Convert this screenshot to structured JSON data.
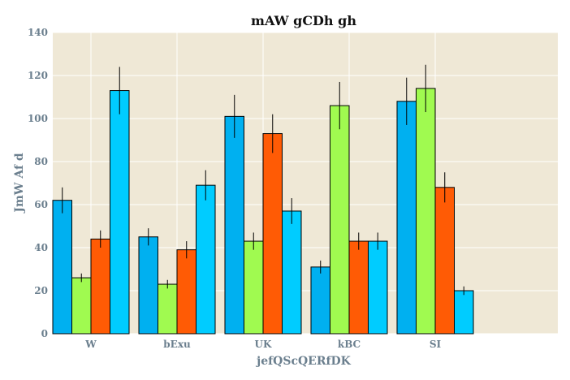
{
  "chart_data": {
    "type": "bar",
    "title": "mAW  gCDh gh",
    "xlabel": "jefQScQERfDK",
    "ylabel": "JmW Af d",
    "categories": [
      "W",
      "bExu",
      "UK",
      "kBC",
      "SI"
    ],
    "ylim": [
      0,
      140
    ],
    "yticks": [
      0,
      20,
      40,
      60,
      80,
      100,
      120,
      140
    ],
    "grid": true,
    "legend": "none",
    "plot_background": "#efe8d6",
    "series": [
      {
        "color": "#00b0f0",
        "values": [
          62,
          45,
          101,
          31,
          108
        ],
        "errors": [
          6,
          4,
          10,
          3,
          11
        ]
      },
      {
        "color": "#a0fa50",
        "values": [
          26,
          23,
          43,
          106,
          114
        ],
        "errors": [
          2,
          2,
          4,
          11,
          11
        ]
      },
      {
        "color": "#ff5b05",
        "values": [
          44,
          39,
          93,
          43,
          68
        ],
        "errors": [
          4,
          4,
          9,
          4,
          7
        ]
      },
      {
        "color": "#00ccff",
        "values": [
          113,
          69,
          57,
          43,
          20
        ],
        "errors": [
          11,
          7,
          6,
          4,
          2
        ]
      }
    ]
  }
}
